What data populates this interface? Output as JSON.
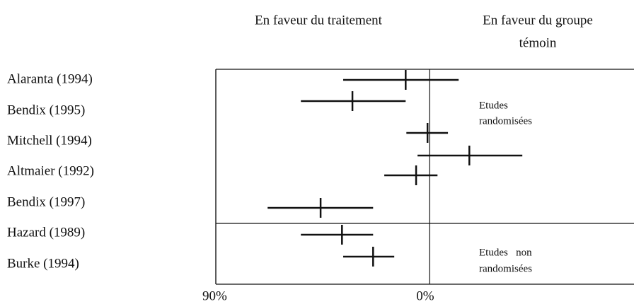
{
  "chart_data": {
    "type": "forest",
    "headers": [
      "En faveur du traitement",
      "En faveur du groupe",
      "témoin"
    ],
    "row_labels": [
      "Alaranta (1994)",
      "Bendix (1995)",
      "Mitchell (1994)",
      "Altmaier (1992)",
      "Bendix (1997)",
      "Hazard (1989)",
      "Burke (1994)"
    ],
    "annotations": [
      [
        "Etudes",
        "randomisées"
      ],
      [
        "Etudes   non",
        "randomisées"
      ]
    ],
    "estimates": [
      {
        "value": 10.1,
        "low": -12.2,
        "high": 36.4
      },
      {
        "value": 32.5,
        "low": 10.1,
        "high": 54.2
      },
      {
        "value": 0.9,
        "low": -7.7,
        "high": 9.8
      },
      {
        "value": -16.7,
        "low": -39.0,
        "high": 5.1
      },
      {
        "value": 5.7,
        "low": -3.3,
        "high": 19.1
      },
      {
        "value": 45.9,
        "low": 23.8,
        "high": 68.2
      },
      {
        "value": 36.9,
        "low": 23.8,
        "high": 54.2
      },
      {
        "value": 23.8,
        "low": 14.9,
        "high": 36.4
      }
    ],
    "xlim": [
      90,
      -86
    ],
    "xticks": [
      {
        "value": 90,
        "label": "90%"
      },
      {
        "value": 0,
        "label": "0%"
      }
    ],
    "color": "#111111"
  }
}
